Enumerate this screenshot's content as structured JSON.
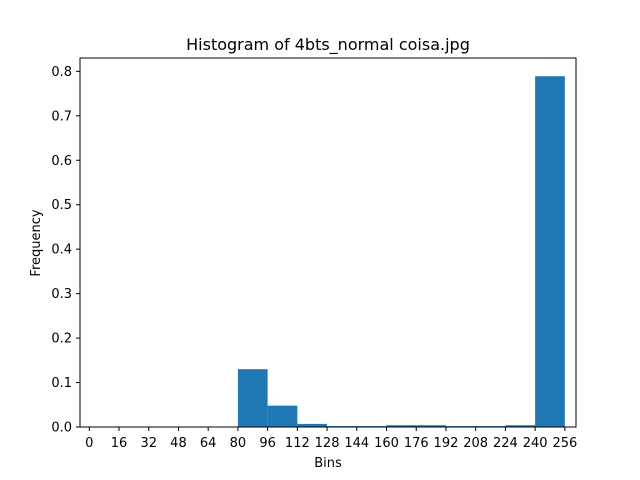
{
  "chart_data": {
    "type": "bar",
    "title": "Histogram of 4bts_normal coisa.jpg",
    "xlabel": "Bins",
    "ylabel": "Frequency",
    "xlim": [
      -5,
      262
    ],
    "ylim": [
      0,
      0.83
    ],
    "bin_edges": [
      0,
      16,
      32,
      48,
      64,
      80,
      96,
      112,
      128,
      144,
      160,
      176,
      192,
      208,
      224,
      240,
      256
    ],
    "bars": [
      {
        "start": 80,
        "end": 96,
        "value": 0.13
      },
      {
        "start": 96,
        "end": 112,
        "value": 0.048
      },
      {
        "start": 112,
        "end": 128,
        "value": 0.007
      },
      {
        "start": 128,
        "end": 144,
        "value": 0.002
      },
      {
        "start": 144,
        "end": 160,
        "value": 0.002
      },
      {
        "start": 160,
        "end": 176,
        "value": 0.004
      },
      {
        "start": 176,
        "end": 192,
        "value": 0.004
      },
      {
        "start": 192,
        "end": 208,
        "value": 0.002
      },
      {
        "start": 208,
        "end": 224,
        "value": 0.002
      },
      {
        "start": 224,
        "end": 240,
        "value": 0.004
      },
      {
        "start": 240,
        "end": 256,
        "value": 0.789
      }
    ],
    "x_ticks": [
      "0",
      "16",
      "32",
      "48",
      "64",
      "80",
      "96",
      "112",
      "128",
      "144",
      "160",
      "176",
      "192",
      "208",
      "224",
      "240",
      "256"
    ],
    "y_ticks": [
      "0.0",
      "0.1",
      "0.2",
      "0.3",
      "0.4",
      "0.5",
      "0.6",
      "0.7",
      "0.8"
    ],
    "grid": false,
    "colors": {
      "bar": "#1f77b4",
      "axis": "#000000",
      "background": "#ffffff"
    }
  }
}
